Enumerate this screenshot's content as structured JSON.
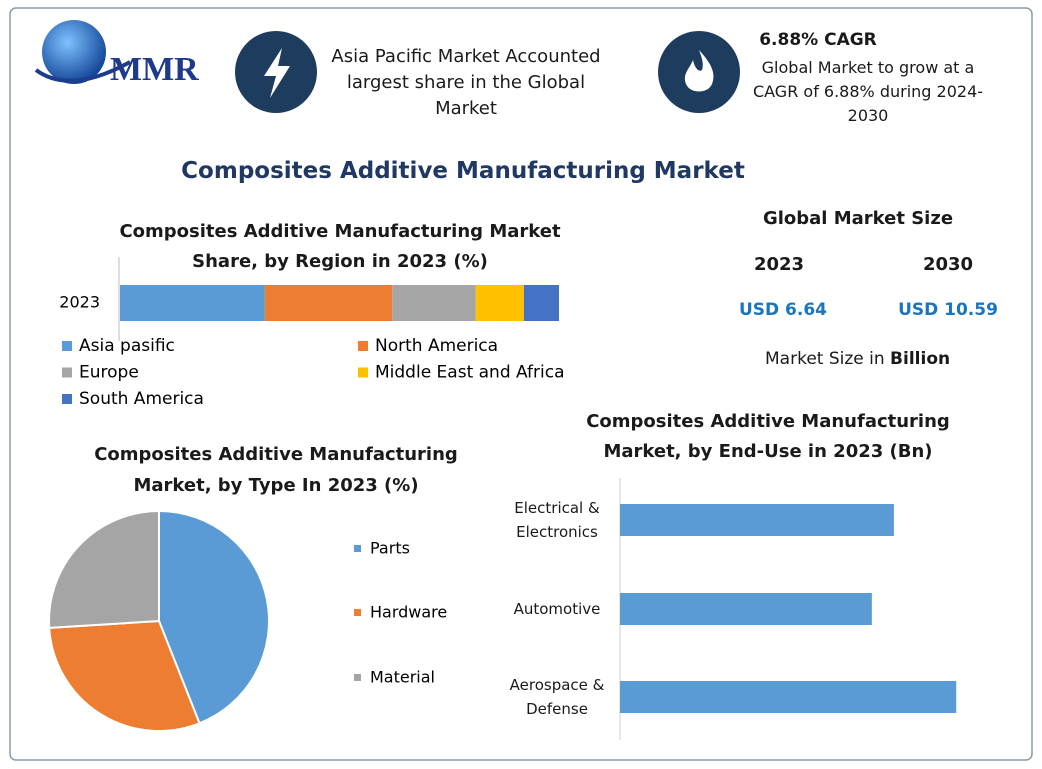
{
  "header": {
    "logo": "MMR",
    "highlight": "Asia Pacific Market Accounted largest share in the Global Market",
    "cagr_title": "6.88% CAGR",
    "cagr_text": "Global Market to grow at a CAGR of 6.88% during 2024-2030"
  },
  "title": "Composites Additive Manufacturing Market",
  "market_size": {
    "title": "Global Market Size",
    "years": [
      "2023",
      "2030"
    ],
    "values": [
      "USD 6.64",
      "USD 10.59"
    ],
    "note": "Market Size in",
    "note_bold": "Billion"
  },
  "chart_data": [
    {
      "type": "bar",
      "orientation": "horizontal",
      "stacked": true,
      "title": [
        "Composites Additive Manufacturing Market",
        "Share, by Region in 2023 (%)"
      ],
      "categories": [
        "2023"
      ],
      "xlim": [
        0,
        100
      ],
      "series": [
        {
          "name": "Asia pasific",
          "color": "#5b9bd5",
          "values": [
            33
          ]
        },
        {
          "name": "North America",
          "color": "#ed7d31",
          "values": [
            29
          ]
        },
        {
          "name": "Europe",
          "color": "#a5a5a5",
          "values": [
            19
          ]
        },
        {
          "name": "Middle East and Africa",
          "color": "#ffc000",
          "values": [
            11
          ]
        },
        {
          "name": "South America",
          "color": "#4472c4",
          "values": [
            8
          ]
        }
      ]
    },
    {
      "type": "pie",
      "title": [
        "Composites Additive Manufacturing",
        "Market, by Type In 2023 (%)"
      ],
      "categories": [
        "Parts",
        "Hardware",
        "Material"
      ],
      "values": [
        44,
        30,
        26
      ],
      "colors": [
        "#5b9bd5",
        "#ed7d31",
        "#a5a5a5"
      ]
    },
    {
      "type": "bar",
      "orientation": "horizontal",
      "title": [
        "Composites Additive Manufacturing",
        "Market, by End-Use in 2023 (Bn)"
      ],
      "categories": [
        "Electrical & Electronics",
        "Automotive",
        "Aerospace & Defense"
      ],
      "values": [
        2.11,
        1.94,
        2.59
      ],
      "color": "#5b9bd5",
      "xlim": [
        0,
        2.75
      ]
    }
  ]
}
